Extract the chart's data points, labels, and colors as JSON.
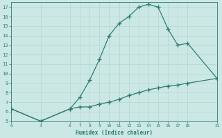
{
  "upper_x": [
    0,
    3,
    6,
    7,
    8,
    9,
    10,
    11,
    12,
    13,
    14,
    15,
    16,
    17,
    18,
    21
  ],
  "upper_y": [
    6.3,
    5.0,
    6.3,
    7.5,
    9.3,
    11.5,
    14.0,
    15.3,
    16.0,
    17.0,
    17.3,
    17.0,
    14.7,
    13.0,
    13.2,
    9.5
  ],
  "lower_x": [
    0,
    3,
    6,
    7,
    8,
    9,
    10,
    11,
    12,
    13,
    14,
    15,
    16,
    17,
    18,
    21
  ],
  "lower_y": [
    6.3,
    5.0,
    6.3,
    6.5,
    6.5,
    6.8,
    7.0,
    7.3,
    7.7,
    8.0,
    8.3,
    8.5,
    8.7,
    8.8,
    9.0,
    9.5
  ],
  "color": "#2e7d72",
  "bg_color": "#cce8e4",
  "grid_color": "#b8d8d4",
  "xlabel": "Humidex (Indice chaleur)",
  "xlim": [
    0,
    21
  ],
  "ylim": [
    5,
    17.5
  ],
  "xticks": [
    0,
    3,
    6,
    7,
    8,
    9,
    10,
    11,
    12,
    13,
    14,
    15,
    16,
    17,
    18,
    21
  ],
  "yticks": [
    5,
    6,
    7,
    8,
    9,
    10,
    11,
    12,
    13,
    14,
    15,
    16,
    17
  ],
  "marker": "+",
  "marker_size": 4,
  "line_width": 0.9
}
